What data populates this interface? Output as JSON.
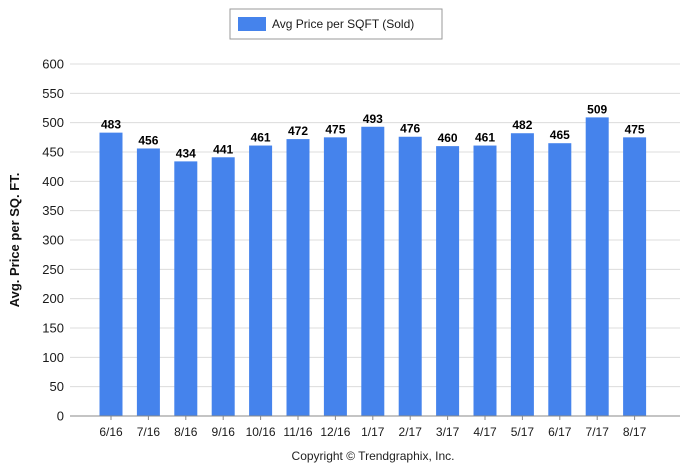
{
  "chart_data": {
    "type": "bar",
    "categories": [
      "6/16",
      "7/16",
      "8/16",
      "9/16",
      "10/16",
      "11/16",
      "12/16",
      "1/17",
      "2/17",
      "3/17",
      "4/17",
      "5/17",
      "6/17",
      "7/17",
      "8/17"
    ],
    "series": [
      {
        "name": "Avg Price per SQFT (Sold)",
        "values": [
          483,
          456,
          434,
          441,
          461,
          472,
          475,
          493,
          476,
          460,
          461,
          482,
          465,
          509,
          475
        ]
      }
    ],
    "ylabel": "Avg. Price per SQ. FT.",
    "xlabel": "",
    "ylim": [
      0,
      600
    ],
    "yticks": [
      0,
      50,
      100,
      150,
      200,
      250,
      300,
      350,
      400,
      450,
      500,
      550,
      600
    ],
    "grid": true,
    "legend": "top-center",
    "data_labels": true
  },
  "footer": {
    "copyright": "Copyright © Trendgraphix, Inc."
  },
  "colors": {
    "bar": "#4583ec",
    "grid": "#dcdcdc",
    "axis": "#888888"
  }
}
